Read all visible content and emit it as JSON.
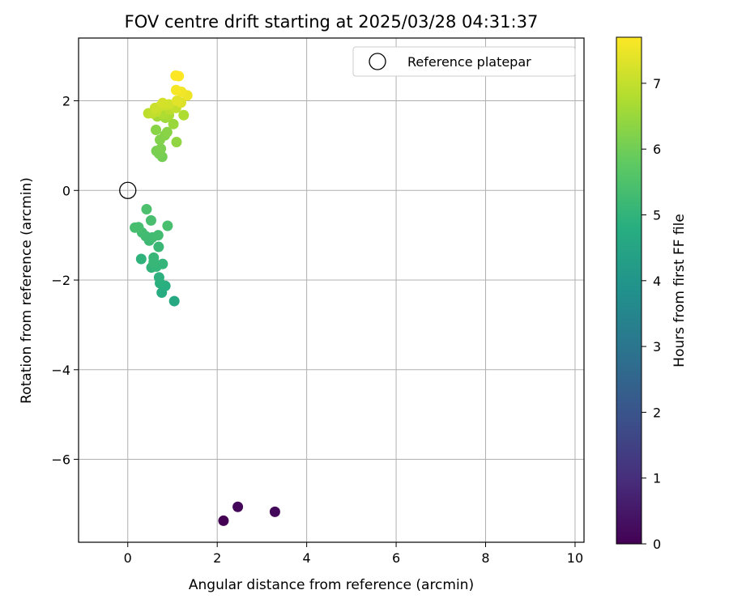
{
  "chart_data": {
    "type": "scatter",
    "title": "FOV centre drift starting at 2025/03/28 04:31:37",
    "xlabel": "Angular distance from reference (arcmin)",
    "ylabel": "Rotation from reference (arcmin)",
    "xlim": [
      -1.1,
      10.2
    ],
    "ylim": [
      -7.85,
      3.4
    ],
    "xticks": [
      0,
      2,
      4,
      6,
      8,
      10
    ],
    "xtick_labels": [
      "0",
      "2",
      "4",
      "6",
      "8",
      "10"
    ],
    "yticks": [
      2,
      0,
      -2,
      -4,
      -6
    ],
    "ytick_labels": [
      "2",
      "0",
      "−2",
      "−4",
      "−6"
    ],
    "grid": true,
    "legend": {
      "position": "top-right",
      "entries": [
        "Reference platepar"
      ]
    },
    "reference_point": {
      "x": 0,
      "y": 0
    },
    "colorbar": {
      "label": "Hours from first FF file",
      "colormap": "viridis",
      "range": [
        0,
        7.7
      ],
      "ticks": [
        0,
        1,
        2,
        3,
        4,
        5,
        6,
        7
      ],
      "tick_labels": [
        "0",
        "1",
        "2",
        "3",
        "4",
        "5",
        "6",
        "7"
      ]
    },
    "points": [
      {
        "x": 2.14,
        "y": -7.37,
        "t": 0.0
      },
      {
        "x": 2.46,
        "y": -7.06,
        "t": 0.1
      },
      {
        "x": 3.29,
        "y": -7.17,
        "t": 0.15
      },
      {
        "x": 1.04,
        "y": -2.47,
        "t": 4.6
      },
      {
        "x": 0.76,
        "y": -2.28,
        "t": 4.75
      },
      {
        "x": 0.84,
        "y": -2.13,
        "t": 4.8
      },
      {
        "x": 0.72,
        "y": -2.07,
        "t": 4.85
      },
      {
        "x": 0.7,
        "y": -1.94,
        "t": 4.9
      },
      {
        "x": 0.3,
        "y": -1.53,
        "t": 4.95
      },
      {
        "x": 0.53,
        "y": -1.72,
        "t": 5.0
      },
      {
        "x": 0.64,
        "y": -1.7,
        "t": 5.05
      },
      {
        "x": 0.78,
        "y": -1.64,
        "t": 5.05
      },
      {
        "x": 0.58,
        "y": -1.6,
        "t": 5.1
      },
      {
        "x": 0.58,
        "y": -1.5,
        "t": 5.1
      },
      {
        "x": 0.69,
        "y": -1.26,
        "t": 5.15
      },
      {
        "x": 0.48,
        "y": -1.12,
        "t": 5.2
      },
      {
        "x": 0.4,
        "y": -1.02,
        "t": 5.25
      },
      {
        "x": 0.55,
        "y": -1.05,
        "t": 5.25
      },
      {
        "x": 0.68,
        "y": -1.0,
        "t": 5.3
      },
      {
        "x": 0.32,
        "y": -0.94,
        "t": 5.3
      },
      {
        "x": 0.16,
        "y": -0.83,
        "t": 5.35
      },
      {
        "x": 0.24,
        "y": -0.82,
        "t": 5.35
      },
      {
        "x": 0.89,
        "y": -0.79,
        "t": 5.4
      },
      {
        "x": 0.52,
        "y": -0.67,
        "t": 5.4
      },
      {
        "x": 0.42,
        "y": -0.42,
        "t": 5.45
      },
      {
        "x": 0.77,
        "y": 0.75,
        "t": 6.05
      },
      {
        "x": 0.7,
        "y": 0.82,
        "t": 6.1
      },
      {
        "x": 0.64,
        "y": 0.88,
        "t": 6.1
      },
      {
        "x": 0.74,
        "y": 0.93,
        "t": 6.15
      },
      {
        "x": 1.09,
        "y": 1.08,
        "t": 6.4
      },
      {
        "x": 0.72,
        "y": 1.13,
        "t": 6.2
      },
      {
        "x": 0.83,
        "y": 1.23,
        "t": 6.25
      },
      {
        "x": 0.88,
        "y": 1.3,
        "t": 6.3
      },
      {
        "x": 0.63,
        "y": 1.35,
        "t": 6.3
      },
      {
        "x": 1.02,
        "y": 1.48,
        "t": 6.5
      },
      {
        "x": 0.84,
        "y": 1.62,
        "t": 6.55
      },
      {
        "x": 1.25,
        "y": 1.68,
        "t": 6.75
      },
      {
        "x": 0.66,
        "y": 1.65,
        "t": 6.6
      },
      {
        "x": 0.92,
        "y": 1.68,
        "t": 6.7
      },
      {
        "x": 0.78,
        "y": 1.7,
        "t": 6.75
      },
      {
        "x": 0.46,
        "y": 1.72,
        "t": 6.9
      },
      {
        "x": 0.55,
        "y": 1.72,
        "t": 6.95
      },
      {
        "x": 0.64,
        "y": 1.76,
        "t": 7.0
      },
      {
        "x": 0.94,
        "y": 1.8,
        "t": 6.9
      },
      {
        "x": 1.08,
        "y": 1.84,
        "t": 7.0
      },
      {
        "x": 0.7,
        "y": 1.86,
        "t": 7.05
      },
      {
        "x": 0.61,
        "y": 1.84,
        "t": 7.1
      },
      {
        "x": 0.82,
        "y": 1.9,
        "t": 7.1
      },
      {
        "x": 0.92,
        "y": 1.92,
        "t": 7.15
      },
      {
        "x": 0.78,
        "y": 1.95,
        "t": 7.2
      },
      {
        "x": 1.19,
        "y": 1.96,
        "t": 7.3
      },
      {
        "x": 1.1,
        "y": 2.0,
        "t": 7.35
      },
      {
        "x": 1.33,
        "y": 2.12,
        "t": 7.5
      },
      {
        "x": 1.2,
        "y": 2.2,
        "t": 7.55
      },
      {
        "x": 1.08,
        "y": 2.24,
        "t": 7.6
      },
      {
        "x": 1.07,
        "y": 2.56,
        "t": 7.65
      },
      {
        "x": 1.14,
        "y": 2.55,
        "t": 7.7
      }
    ]
  }
}
